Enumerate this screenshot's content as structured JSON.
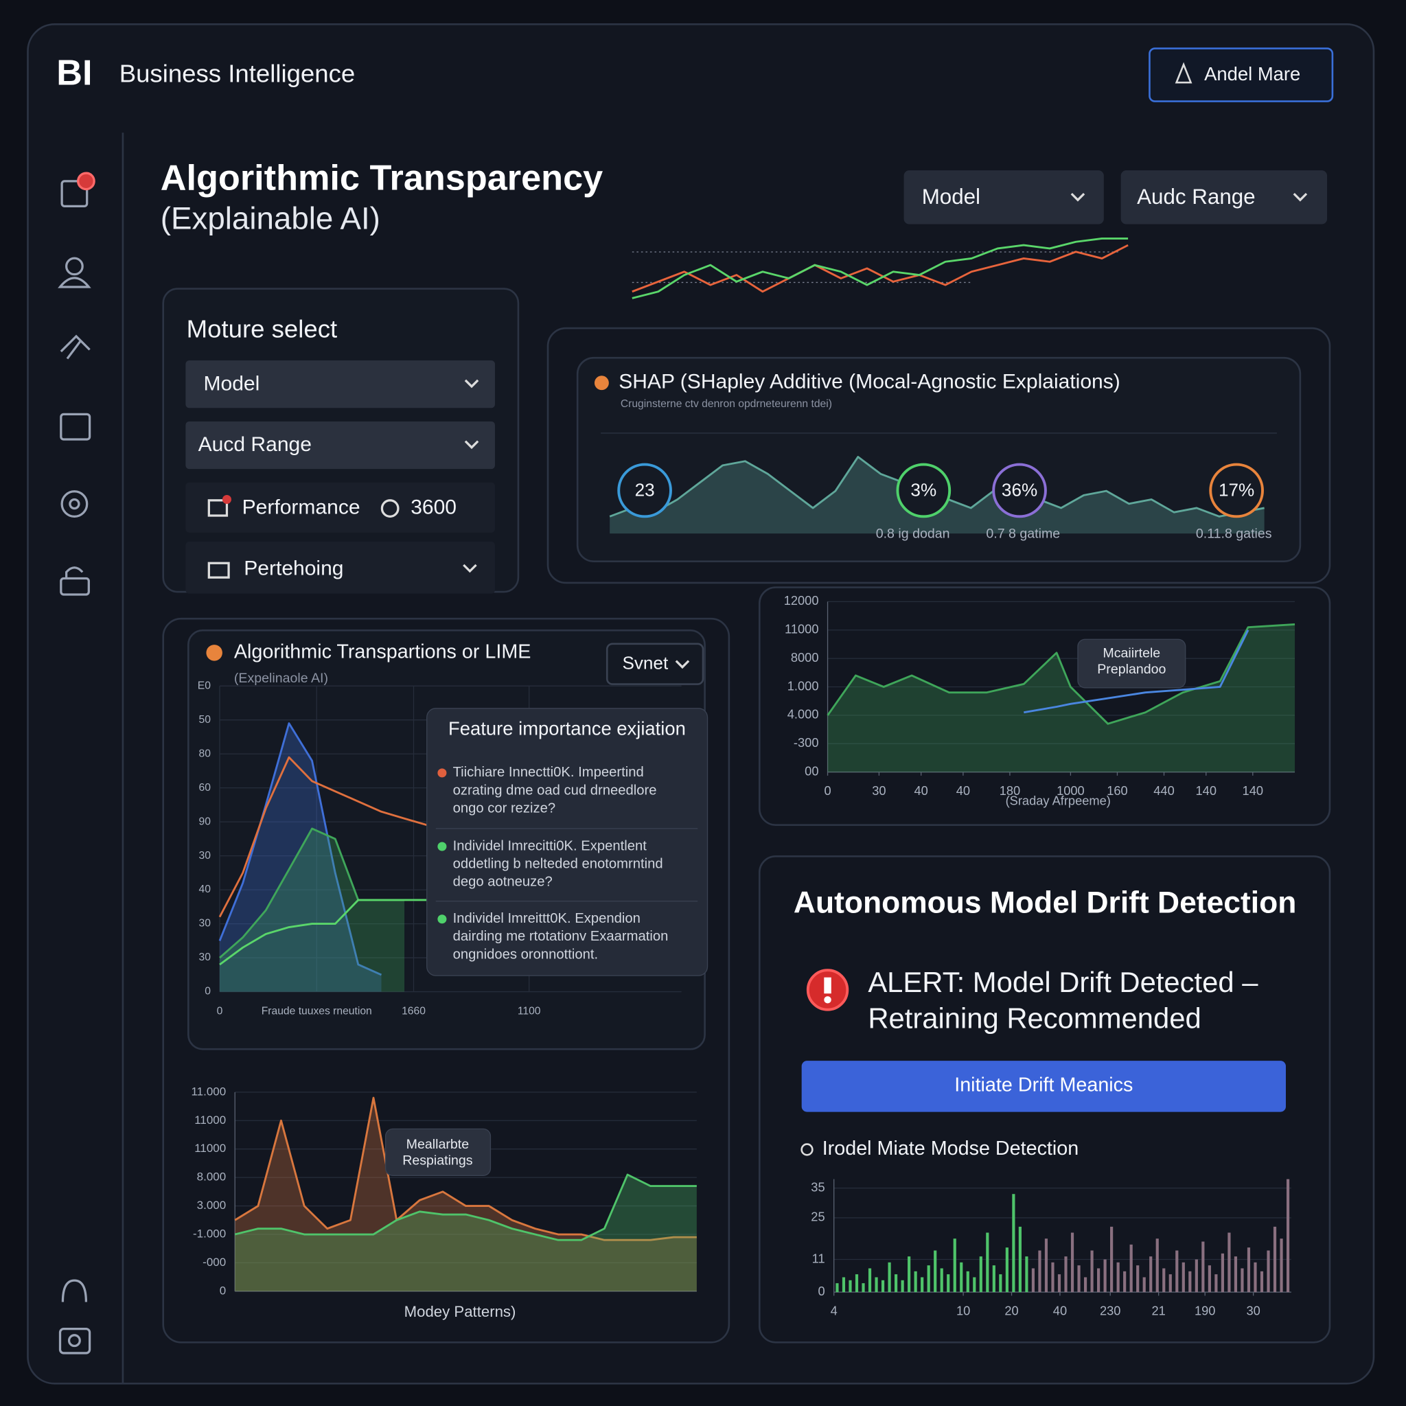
{
  "header": {
    "logo": "BI",
    "title": "Business Intelligence",
    "button": "Andel Mare"
  },
  "page": {
    "title": "Algorithmic Transparency",
    "subtitle": "(Explainable AI)",
    "filters": [
      "Model",
      "Audc Range"
    ]
  },
  "sparkline": {
    "type": "line",
    "ylim": [
      0,
      10
    ],
    "series": [
      {
        "type": "line",
        "color": "#e8643c",
        "values": [
          2,
          3.5,
          5,
          3,
          4.5,
          2,
          4,
          6,
          4,
          5.5,
          3.5,
          4.5,
          3,
          5,
          6,
          7,
          6.5,
          8,
          7,
          9
        ]
      },
      {
        "type": "line",
        "color": "#5ad66a",
        "values": [
          1,
          2,
          4.5,
          6,
          3.5,
          5,
          4,
          6,
          5,
          3,
          5,
          4.5,
          6.5,
          7,
          8.5,
          9,
          8.5,
          9.5,
          10,
          10
        ]
      }
    ]
  },
  "selector": {
    "title": "Moture select",
    "dropdowns": [
      "Model",
      "Aucd Range"
    ],
    "performance": "Performance",
    "performance_value": "3600",
    "option": "Pertehoing"
  },
  "shap": {
    "title": "SHAP (SHapley Additive (Mocal-Agnostic Explaiations)",
    "subtitle": "Cruginsterne ctv denron opdrneteurenn tdei)",
    "wave": {
      "type": "area",
      "ylim": [
        0,
        10
      ],
      "series": [
        {
          "type": "area",
          "color": "#5fa79a",
          "values": [
            2,
            3,
            2.5,
            4,
            6,
            8,
            8.5,
            7,
            5,
            3,
            5,
            9,
            7,
            6,
            8,
            4,
            3,
            5,
            6,
            4,
            3,
            4.5,
            5,
            3.5,
            4,
            2.5,
            3,
            2,
            2.5,
            3
          ]
        }
      ]
    },
    "gauges": [
      {
        "label": "23",
        "color": "#3a9ad9"
      },
      {
        "label": "3%",
        "color": "#4fd16b"
      },
      {
        "label": "36%",
        "color": "#8b6fd6"
      },
      {
        "label": "17%",
        "color": "#e8843c"
      }
    ],
    "captions": [
      "0.8 ig dodan",
      "0.7 8 gatime",
      "0.11.8 gaties"
    ]
  },
  "lime": {
    "title": "Algorithmic Transpartions or LIME",
    "subtitle": "(Expelinaole AI)",
    "dropdown": "Svnet",
    "chart": {
      "type": "area",
      "ylim": [
        0,
        9
      ],
      "xlim": [
        0,
        10
      ],
      "yticks": [
        {
          "value": 9,
          "label": "E0"
        },
        {
          "value": 8,
          "label": "50"
        },
        {
          "value": 7,
          "label": "80"
        },
        {
          "value": 6,
          "label": "60"
        },
        {
          "value": 5,
          "label": "90"
        },
        {
          "value": 4,
          "label": "30"
        },
        {
          "value": 3,
          "label": "40"
        },
        {
          "value": 2,
          "label": "30"
        },
        {
          "value": 1,
          "label": "30"
        },
        {
          "value": 0,
          "label": "0"
        }
      ],
      "xticks": [
        {
          "value": 0,
          "label": "0"
        },
        {
          "value": 2.1,
          "label": "Fraude tuuxes rneution"
        },
        {
          "value": 4.2,
          "label": "1660"
        },
        {
          "value": 6.7,
          "label": "1100"
        }
      ],
      "x": [
        0,
        0.5,
        1,
        1.5,
        2,
        2.5,
        3,
        3.5,
        4,
        4.5
      ],
      "series": [
        {
          "type": "area",
          "color": "#3f6fd8",
          "values": [
            1.5,
            3.2,
            5.5,
            7.9,
            6.8,
            3.5,
            0.8,
            0.5,
            null,
            null
          ]
        },
        {
          "type": "area",
          "color": "#3fa65a",
          "values": [
            1,
            1.6,
            2.4,
            3.6,
            4.8,
            4.5,
            2.7,
            2.7,
            2.7,
            null
          ]
        },
        {
          "type": "line",
          "color": "#e0703e",
          "values": [
            2.2,
            3.5,
            5.4,
            6.9,
            6.2,
            5.9,
            5.6,
            5.3,
            5.1,
            4.9
          ]
        },
        {
          "type": "line",
          "color": "#5ad66a",
          "values": [
            0.8,
            1.3,
            1.7,
            1.9,
            2,
            2,
            2.7,
            2.7,
            2.7,
            2.7
          ]
        }
      ]
    }
  },
  "tooltip": {
    "title": "Feature importance exjiation",
    "items": [
      {
        "color": "#e0603e",
        "lines": [
          "Tiichiare Innectti0K. Impeertind",
          "ozrating dme oad cud drneedlore",
          "ongo cor rezize?"
        ]
      },
      {
        "color": "#4fd16b",
        "lines": [
          "Individel Imrecitti0K. Expentlent",
          "oddetling b nelteded enotomrntind",
          "dego aotneuze?"
        ]
      },
      {
        "color": "#4fd16b",
        "lines": [
          "Individel Imreittt0K. Expendion",
          "dairding me rtotationv Exaarmation",
          "ongnidoes oronnottiont."
        ]
      }
    ]
  },
  "bottom_chart": {
    "type": "area",
    "ylim": [
      0,
      7
    ],
    "xlim": [
      0,
      20
    ],
    "x_label": "Modey Patterns)",
    "annotation": [
      "Meallarbte",
      "Respiatings"
    ],
    "yticks": [
      {
        "value": 7,
        "label": "11.000"
      },
      {
        "value": 6,
        "label": "11000"
      },
      {
        "value": 5,
        "label": "11000"
      },
      {
        "value": 4,
        "label": "8.000"
      },
      {
        "value": 3,
        "label": "3.000"
      },
      {
        "value": 2,
        "label": "-1.000"
      },
      {
        "value": 1,
        "label": "-000"
      },
      {
        "value": 0,
        "label": "0"
      }
    ],
    "x": [
      0,
      1,
      2,
      3,
      4,
      5,
      6,
      7,
      8,
      9,
      10,
      11,
      12,
      13,
      14,
      15,
      16,
      17,
      18,
      19,
      20
    ],
    "series": [
      {
        "type": "area",
        "color": "#d9773e",
        "values": [
          2.5,
          3,
          6,
          3,
          2.2,
          2.5,
          6.8,
          2.5,
          3.2,
          3.5,
          3,
          3,
          2.5,
          2.2,
          2,
          2,
          1.8,
          1.8,
          1.8,
          1.9,
          1.9
        ]
      },
      {
        "type": "area",
        "color": "#4fc46a",
        "values": [
          2,
          2.2,
          2.2,
          2,
          2,
          2,
          2,
          2.5,
          2.8,
          2.7,
          2.7,
          2.5,
          2.2,
          2,
          1.8,
          1.8,
          2.2,
          4.1,
          3.7,
          3.7,
          3.7
        ]
      }
    ]
  },
  "trend_chart": {
    "type": "area",
    "ylim": [
      0,
      6
    ],
    "xlim": [
      0,
      10
    ],
    "x_label": "(Sraday Afrpeeme)",
    "annotation": [
      "Mcaiirtele",
      "Preplandoo"
    ],
    "yticks": [
      {
        "value": 6,
        "label": "12000"
      },
      {
        "value": 5,
        "label": "11000"
      },
      {
        "value": 4,
        "label": "8000"
      },
      {
        "value": 3,
        "label": "1.000"
      },
      {
        "value": 2,
        "label": "4.000"
      },
      {
        "value": 1,
        "label": "-300"
      },
      {
        "value": 0,
        "label": "00"
      }
    ],
    "xticks": [
      {
        "value": 0,
        "label": "0"
      },
      {
        "value": 1.1,
        "label": "30"
      },
      {
        "value": 2,
        "label": "40"
      },
      {
        "value": 2.9,
        "label": "40"
      },
      {
        "value": 3.9,
        "label": "180"
      },
      {
        "value": 5.2,
        "label": "1000"
      },
      {
        "value": 6.2,
        "label": "160"
      },
      {
        "value": 7.2,
        "label": "440"
      },
      {
        "value": 8.1,
        "label": "140"
      },
      {
        "value": 9.1,
        "label": "140"
      }
    ],
    "x": [
      0,
      0.6,
      1.2,
      1.8,
      2.6,
      3.4,
      4.2,
      4.9,
      5.2,
      6,
      6.8,
      7.6,
      8.4,
      9,
      10
    ],
    "series": [
      {
        "type": "area",
        "color": "#3fa65a",
        "values": [
          2,
          3.4,
          3,
          3.4,
          2.8,
          2.8,
          3.1,
          4.2,
          3,
          1.7,
          2.1,
          2.8,
          3.2,
          5.1,
          5.2
        ]
      },
      {
        "type": "line",
        "color": "#4a86e0",
        "values": [
          null,
          null,
          null,
          null,
          null,
          null,
          2.1,
          2.3,
          2.4,
          2.6,
          2.8,
          2.9,
          3,
          5,
          null
        ]
      }
    ]
  },
  "drift": {
    "title": "Autonomous Model Drift Detection",
    "alert": [
      "ALERT: Model Drift Detected –",
      "Retraining Recommended"
    ],
    "button": "Initiate Drift Meanics",
    "subtitle": "Irodel Miate Modse Detection",
    "chart": {
      "type": "bar",
      "ylim": [
        0,
        38
      ],
      "xlim": [
        0,
        70
      ],
      "yticks": [
        0,
        11,
        25,
        35
      ],
      "xticks": [
        {
          "value": 0,
          "label": "4"
        },
        {
          "value": 19.8,
          "label": "10"
        },
        {
          "value": 27.2,
          "label": "20"
        },
        {
          "value": 34.6,
          "label": "40"
        },
        {
          "value": 42.3,
          "label": "230"
        },
        {
          "value": 49.7,
          "label": "21"
        },
        {
          "value": 56.8,
          "label": "190"
        },
        {
          "value": 64.2,
          "label": "30"
        }
      ],
      "series": [
        {
          "type": "bar",
          "color": "#4fc46a",
          "values": [
            3,
            5,
            4,
            6,
            3,
            8,
            5,
            4,
            10,
            6,
            4,
            12,
            7,
            5,
            9,
            14,
            8,
            6,
            18,
            10,
            7,
            5,
            12,
            20,
            9,
            6,
            15,
            33,
            22,
            12
          ]
        },
        {
          "type": "bar",
          "color": "#8a7080",
          "values": [
            8,
            14,
            18,
            10,
            6,
            12,
            20,
            9,
            5,
            14,
            8,
            11,
            22,
            10,
            7,
            16,
            9,
            5,
            12,
            18,
            8,
            6,
            14,
            10,
            7,
            11,
            17,
            9,
            6,
            13,
            20,
            12,
            8,
            15,
            10,
            7,
            14,
            22,
            18,
            38
          ]
        }
      ]
    }
  }
}
